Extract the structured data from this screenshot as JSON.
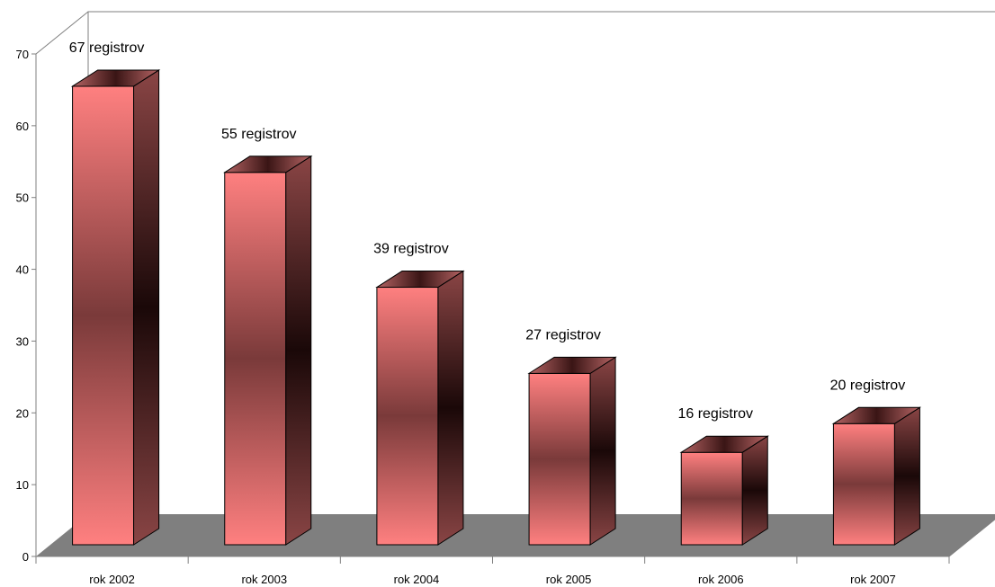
{
  "chart_data": {
    "type": "bar",
    "categories": [
      "rok 2002",
      "rok 2003",
      "rok 2004",
      "rok 2005",
      "rok 2006",
      "rok 2007"
    ],
    "values": [
      67,
      55,
      39,
      27,
      16,
      20
    ],
    "data_labels": [
      "67 registrov",
      "55 registrov",
      "39 registrov",
      "27 registrov",
      "16 registrov",
      "20 registrov"
    ],
    "yticks": [
      "0",
      "10",
      "20",
      "30",
      "40",
      "50",
      "60",
      "70"
    ],
    "ylim": [
      0,
      70
    ],
    "title": "",
    "xlabel": "",
    "ylabel": "",
    "style": "3d",
    "grid": false,
    "legend": "none",
    "colors": {
      "bar_light": "#ff7f7f",
      "bar_dark": "#7a3a3a",
      "side_shadow": "#1a0808",
      "floor": "#7f7f7f",
      "axis": "#7f7f7f"
    }
  }
}
